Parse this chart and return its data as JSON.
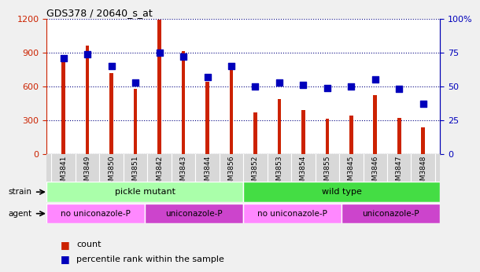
{
  "title": "GDS378 / 20640_s_at",
  "samples": [
    "GSM3841",
    "GSM3849",
    "GSM3850",
    "GSM3851",
    "GSM3842",
    "GSM3843",
    "GSM3844",
    "GSM3856",
    "GSM3852",
    "GSM3853",
    "GSM3854",
    "GSM3855",
    "GSM3845",
    "GSM3846",
    "GSM3847",
    "GSM3848"
  ],
  "counts": [
    850,
    960,
    720,
    580,
    1190,
    910,
    640,
    770,
    370,
    490,
    390,
    310,
    340,
    520,
    320,
    240
  ],
  "percentiles": [
    71,
    74,
    65,
    53,
    75,
    72,
    57,
    65,
    50,
    53,
    51,
    49,
    50,
    55,
    48,
    37
  ],
  "strain_groups": [
    {
      "label": "pickle mutant",
      "start": 0,
      "end": 8,
      "color": "#aaffaa"
    },
    {
      "label": "wild type",
      "start": 8,
      "end": 16,
      "color": "#44dd44"
    }
  ],
  "agent_groups": [
    {
      "label": "no uniconazole-P",
      "start": 0,
      "end": 4,
      "color": "#ff88ff"
    },
    {
      "label": "uniconazole-P",
      "start": 4,
      "end": 8,
      "color": "#cc44cc"
    },
    {
      "label": "no uniconazole-P",
      "start": 8,
      "end": 12,
      "color": "#ff88ff"
    },
    {
      "label": "uniconazole-P",
      "start": 12,
      "end": 16,
      "color": "#cc44cc"
    }
  ],
  "bar_color": "#cc2200",
  "dot_color": "#0000bb",
  "ylim_left": [
    0,
    1200
  ],
  "ylim_right": [
    0,
    100
  ],
  "yticks_left": [
    0,
    300,
    600,
    900,
    1200
  ],
  "yticks_right": [
    0,
    25,
    50,
    75,
    100
  ],
  "ytick_labels_right": [
    "0",
    "25",
    "50",
    "75",
    "100%"
  ],
  "bar_width": 0.15,
  "dot_size": 28,
  "tick_label_color_left": "#cc2200",
  "tick_label_color_right": "#0000bb"
}
